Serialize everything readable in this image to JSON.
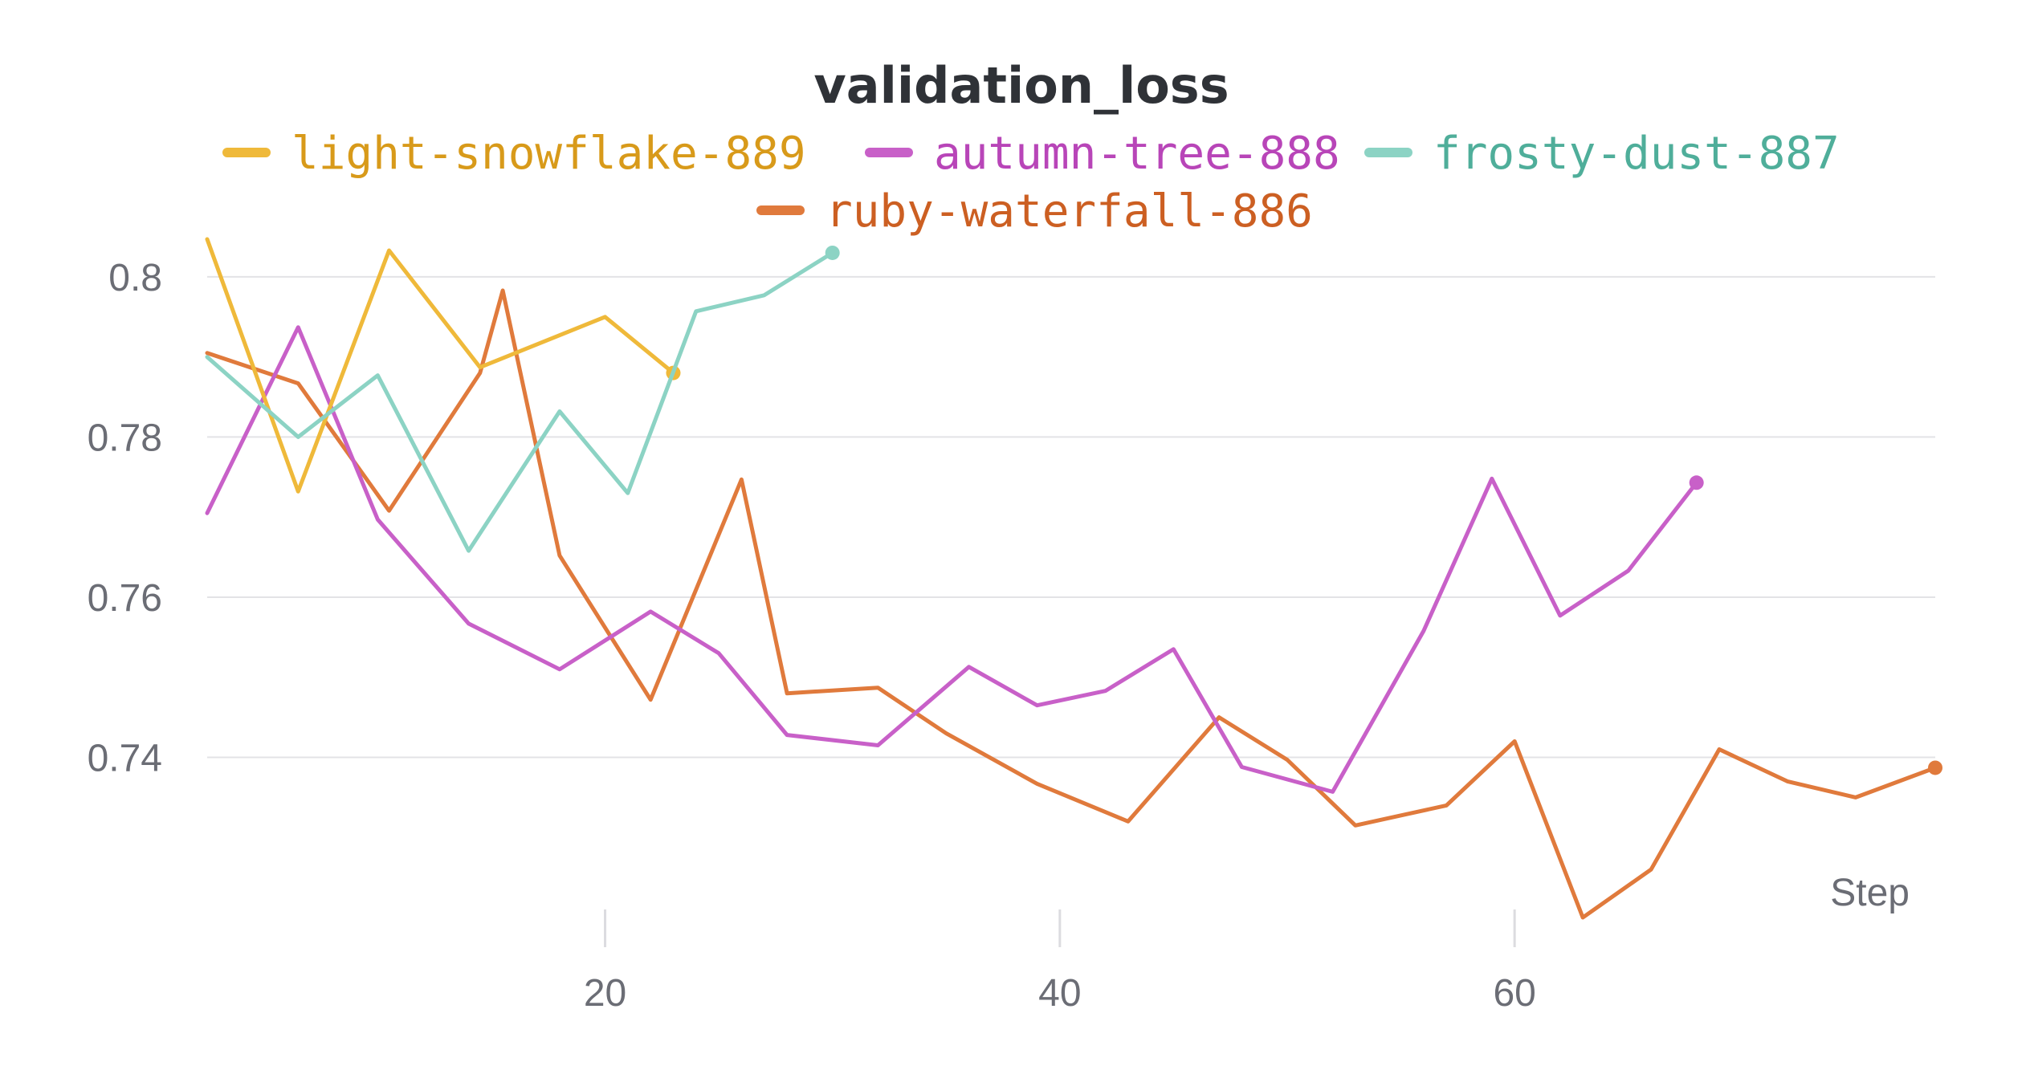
{
  "chart_data": {
    "type": "line",
    "title": "validation_loss",
    "xlabel": "Step",
    "ylabel": "",
    "xlim": [
      2.5,
      78.5
    ],
    "ylim": [
      0.7183,
      0.8045
    ],
    "xticks": [
      20,
      40,
      60
    ],
    "yticks": [
      0.74,
      0.76,
      0.78,
      0.8
    ],
    "ytick_labels": [
      "0.74",
      "0.76",
      "0.78",
      "0.8"
    ],
    "legend_position": "top-center",
    "series": [
      {
        "name": "light-snowflake-889",
        "color": "#efb93a",
        "text_color": "#d89a1a",
        "x": [
          2.5,
          6.5,
          10.5,
          14.5,
          20,
          23
        ],
        "y": [
          0.8047,
          0.7732,
          0.8033,
          0.7887,
          0.795,
          0.788
        ]
      },
      {
        "name": "autumn-tree-888",
        "color": "#c860c8",
        "text_color": "#b845b8",
        "x": [
          2.5,
          6.5,
          10,
          14,
          18,
          22,
          25,
          28,
          32,
          36,
          39,
          42,
          45,
          48,
          52,
          56,
          59,
          62,
          65,
          68
        ],
        "y": [
          0.7705,
          0.7937,
          0.7697,
          0.7567,
          0.751,
          0.7582,
          0.753,
          0.7428,
          0.7415,
          0.7513,
          0.7465,
          0.7483,
          0.7535,
          0.7388,
          0.7357,
          0.7558,
          0.7748,
          0.7577,
          0.7633,
          0.7743
        ]
      },
      {
        "name": "frosty-dust-887",
        "color": "#8cd3c4",
        "text_color": "#4fae9a",
        "x": [
          2.5,
          6.5,
          10,
          14,
          18,
          21,
          24,
          27,
          30
        ],
        "y": [
          0.79,
          0.78,
          0.7877,
          0.7658,
          0.7832,
          0.773,
          0.7957,
          0.7977,
          0.803
        ]
      },
      {
        "name": "ruby-waterfall-886",
        "color": "#e07a3c",
        "text_color": "#cc5f22",
        "x": [
          2.5,
          6.5,
          10.5,
          14.5,
          15.5,
          18,
          22,
          26,
          28,
          32,
          35,
          39,
          43,
          47,
          50,
          53,
          57,
          60,
          63,
          66,
          69,
          72,
          75,
          78.5
        ],
        "y": [
          0.7905,
          0.7867,
          0.7708,
          0.788,
          0.7983,
          0.7652,
          0.7472,
          0.7747,
          0.748,
          0.7487,
          0.743,
          0.7367,
          0.732,
          0.745,
          0.7397,
          0.7315,
          0.734,
          0.742,
          0.72,
          0.726,
          0.741,
          0.737,
          0.735,
          0.7387
        ]
      }
    ]
  }
}
